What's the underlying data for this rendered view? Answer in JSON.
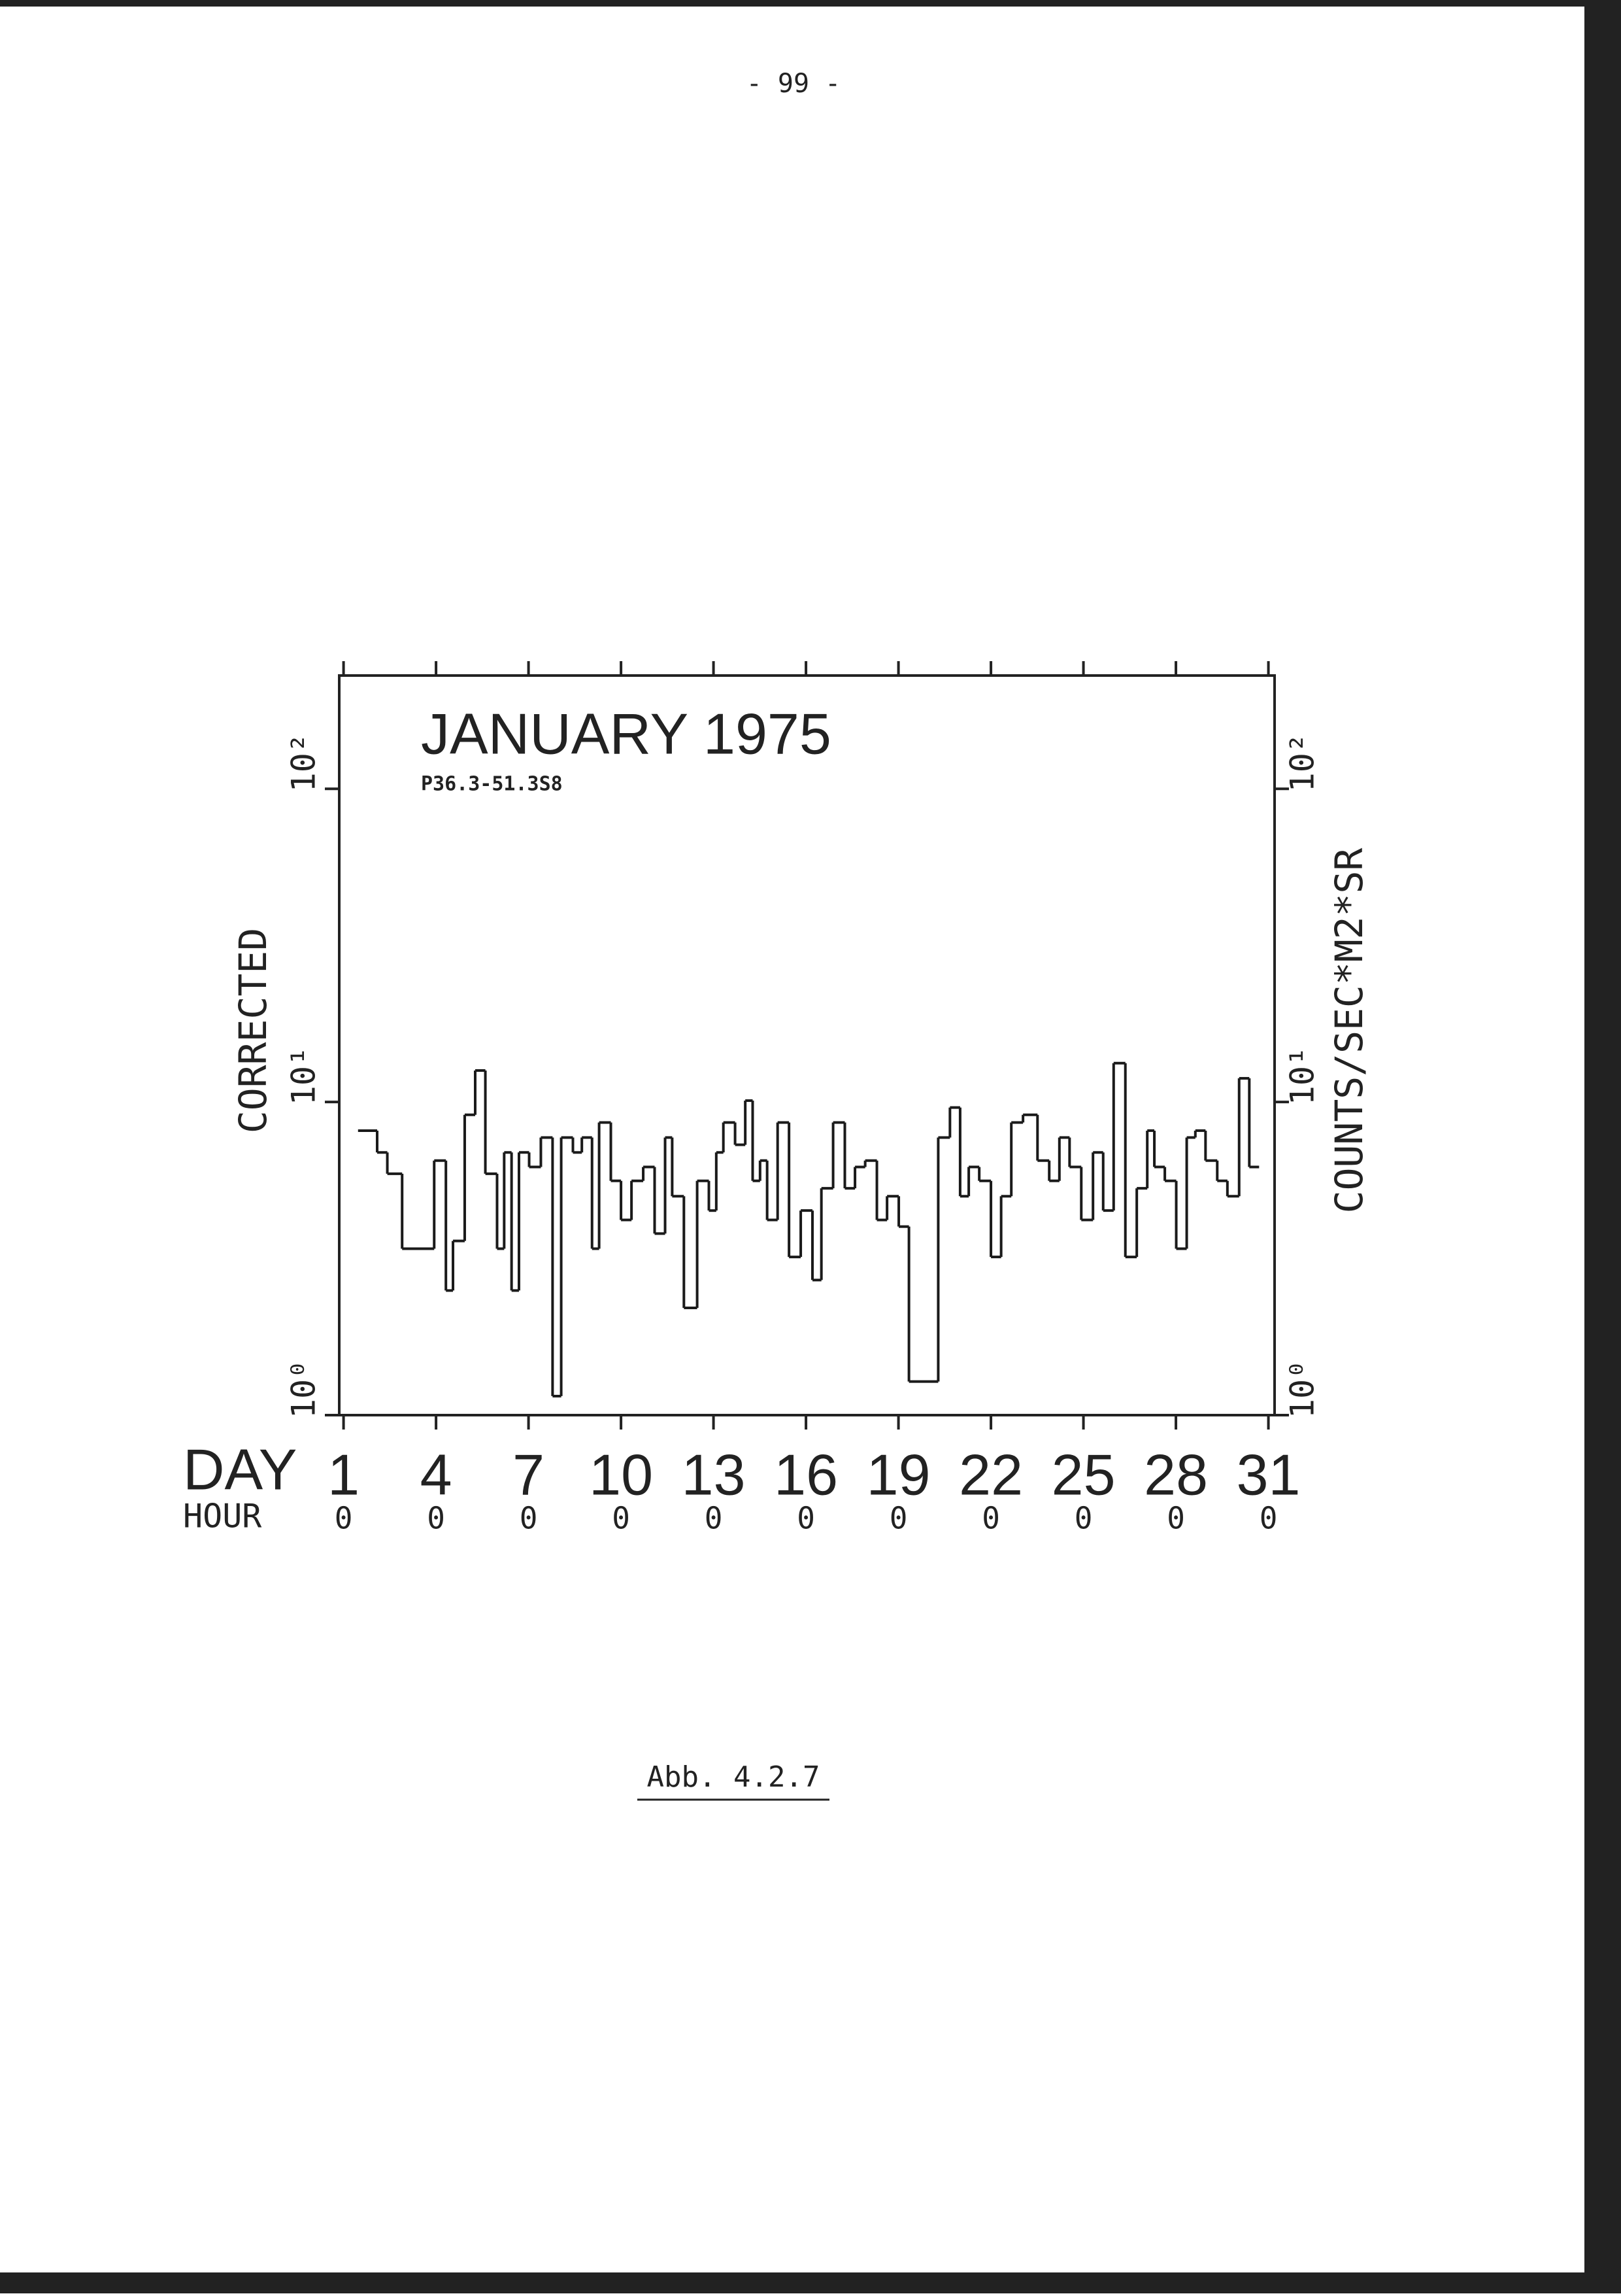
{
  "page_number": "- 99 -",
  "caption": "Abb. 4.2.7",
  "chart_data": {
    "type": "step",
    "title": "JANUARY 1975",
    "subtitle": "P36.3-51.3S8",
    "x_label": "DAY",
    "x_sublabel": "HOUR",
    "y_label": "CORRECTED",
    "y2_label": "COUNTS/SEC*M2*SR",
    "log_y": true,
    "grid": false,
    "xlim": [
      0.86,
      31.2
    ],
    "xticks": [
      1,
      4,
      7,
      10,
      13,
      16,
      19,
      22,
      25,
      28,
      31
    ],
    "x_sublabels": [
      "0",
      "0",
      "0",
      "0",
      "0",
      "0",
      "0",
      "0",
      "0",
      "0",
      "0"
    ],
    "ylim": [
      1,
      230
    ],
    "yticks": [
      {
        "value": 1,
        "label": "10⁰"
      },
      {
        "value": 10,
        "label": "10¹"
      },
      {
        "value": 100,
        "label": "10²"
      }
    ],
    "series": [
      {
        "color": "#1a1a1a",
        "x": [
          1.47,
          2.09,
          2.42,
          2.9,
          3.94,
          4.32,
          4.55,
          4.93,
          5.27,
          5.6,
          5.98,
          6.21,
          6.45,
          6.69,
          7.02,
          7.4,
          7.78,
          8.06,
          8.44,
          8.73,
          9.06,
          9.29,
          9.67,
          10.0,
          10.34,
          10.72,
          11.09,
          11.43,
          11.66,
          12.04,
          12.47,
          12.85,
          13.09,
          13.32,
          13.7,
          14.03,
          14.27,
          14.51,
          14.74,
          15.08,
          15.45,
          15.83,
          16.21,
          16.5,
          16.88,
          17.26,
          17.59,
          17.92,
          18.3,
          18.63,
          19.01,
          19.34,
          20.29,
          20.67,
          21.0,
          21.28,
          21.62,
          22.0,
          22.33,
          22.66,
          23.04,
          23.51,
          23.89,
          24.22,
          24.55,
          24.93,
          25.31,
          25.64,
          25.98,
          26.36,
          26.73,
          27.07,
          27.3,
          27.64,
          28.01,
          28.35,
          28.63,
          28.96,
          29.34,
          29.67,
          30.05,
          30.38
        ],
        "values": [
          8.1,
          6.9,
          5.9,
          3.4,
          6.5,
          2.5,
          3.6,
          9.1,
          12.6,
          5.9,
          3.4,
          6.9,
          2.5,
          6.9,
          6.2,
          7.7,
          1.15,
          7.7,
          6.9,
          7.7,
          3.4,
          8.6,
          5.6,
          4.2,
          5.6,
          6.2,
          3.8,
          7.7,
          5.0,
          2.2,
          5.6,
          4.5,
          6.9,
          8.6,
          7.3,
          10.1,
          5.6,
          6.5,
          4.2,
          8.6,
          3.2,
          4.5,
          2.7,
          5.3,
          8.6,
          5.3,
          6.2,
          6.5,
          4.2,
          5.0,
          4.0,
          1.28,
          7.7,
          9.6,
          5.0,
          6.2,
          5.6,
          3.2,
          5.0,
          8.6,
          9.1,
          6.5,
          5.6,
          7.7,
          6.2,
          4.2,
          6.9,
          4.5,
          13.3,
          3.2,
          5.3,
          8.1,
          6.2,
          5.6,
          3.4,
          7.7,
          8.1,
          6.5,
          5.6,
          5.0,
          11.9,
          6.2
        ]
      }
    ]
  }
}
